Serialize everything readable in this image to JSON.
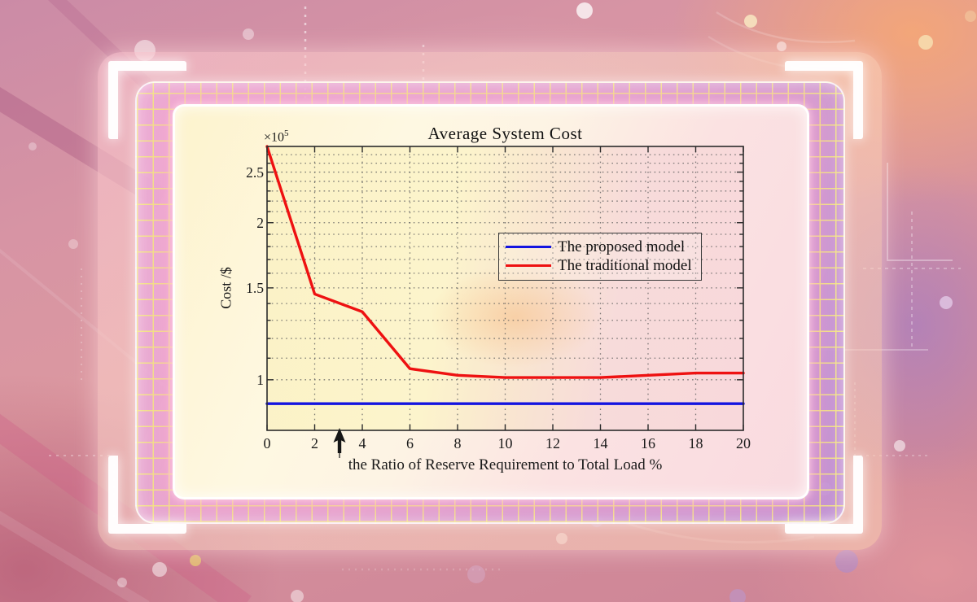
{
  "title": "Average System Cost",
  "y_exponent_base": "×10",
  "y_exponent_power": "5",
  "ylabel": "Cost /$",
  "xlabel": "the Ratio of Reserve Requirement to Total Load %",
  "legend": {
    "items": [
      {
        "label": "The proposed model",
        "color": "#1414e0"
      },
      {
        "label": "The traditional model",
        "color": "#ee1111"
      }
    ]
  },
  "colors": {
    "proposed_line": "#1414e0",
    "traditional_line": "#ee1111",
    "grid": "#606060",
    "axis": "#2b2b2b"
  },
  "chart_data": {
    "type": "line",
    "title": "Average System Cost",
    "xlabel": "the Ratio of Reserve Requirement to Total Load %",
    "ylabel": "Cost /$",
    "y_scale": "log",
    "grid": true,
    "legend_position": "upper-right-inside",
    "x": [
      0,
      2,
      4,
      6,
      8,
      10,
      12,
      14,
      16,
      18,
      20
    ],
    "series": [
      {
        "name": "The proposed model",
        "color": "#1414e0",
        "values": [
          90000,
          90000,
          90000,
          90000,
          90000,
          90000,
          90000,
          90000,
          90000,
          90000,
          90000
        ]
      },
      {
        "name": "The traditional model",
        "color": "#ee1111",
        "values": [
          280000,
          146000,
          135000,
          105000,
          102000,
          101000,
          101000,
          101000,
          102000,
          103000,
          103000
        ]
      }
    ],
    "xlim": [
      0,
      20
    ],
    "ylim": [
      80000,
      280000
    ],
    "x_ticks": [
      0,
      2,
      4,
      6,
      8,
      10,
      12,
      14,
      16,
      18,
      20
    ],
    "x_tick_labels": [
      "0",
      "2",
      "4",
      "6",
      "8",
      "10",
      "12",
      "14",
      "16",
      "18",
      "20"
    ],
    "y_ticks": [
      100000,
      150000,
      200000,
      250000
    ],
    "y_tick_labels": [
      "1",
      "1.5",
      "2",
      "2.5"
    ],
    "y_minor_step": 10000
  }
}
